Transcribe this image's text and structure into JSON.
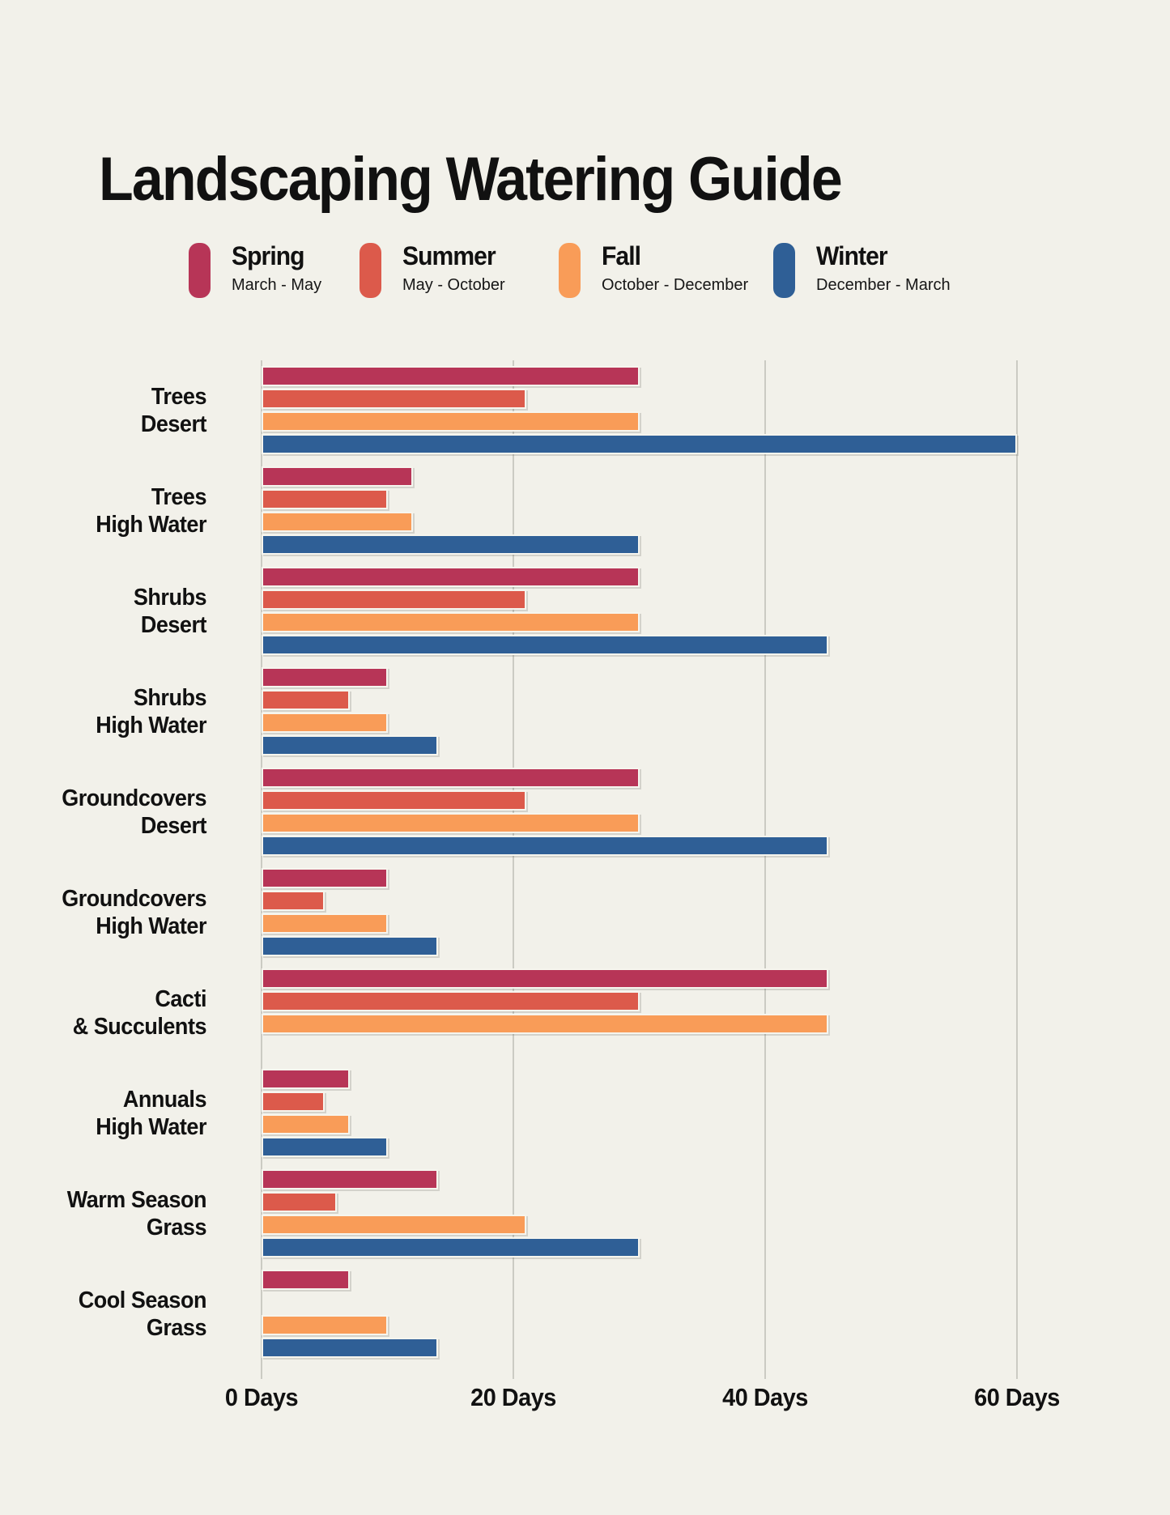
{
  "title": "Landscaping Watering Guide",
  "legend": {
    "items": [
      {
        "id": "spring",
        "label": "Spring",
        "range": "March - May",
        "color": "#B73557"
      },
      {
        "id": "summer",
        "label": "Summer",
        "range": "May - October",
        "color": "#DC5A4B"
      },
      {
        "id": "fall",
        "label": "Fall",
        "range": "October - December",
        "color": "#F99C58"
      },
      {
        "id": "winter",
        "label": "Winter",
        "range": "December - March",
        "color": "#2F5F96"
      }
    ]
  },
  "chart_data": {
    "type": "bar",
    "orientation": "horizontal",
    "title": "Landscaping Watering Guide",
    "unit": "Days",
    "xlim": [
      0,
      60
    ],
    "grid": true,
    "legend_position": "top",
    "x_ticks": [
      {
        "value": 0,
        "label": "0 Days"
      },
      {
        "value": 20,
        "label": "20 Days"
      },
      {
        "value": 40,
        "label": "40 Days"
      },
      {
        "value": 60,
        "label": "60 Days"
      }
    ],
    "categories": [
      {
        "line1": "Trees",
        "line2": "Desert"
      },
      {
        "line1": "Trees",
        "line2": "High Water"
      },
      {
        "line1": "Shrubs",
        "line2": "Desert"
      },
      {
        "line1": "Shrubs",
        "line2": "High Water"
      },
      {
        "line1": "Groundcovers",
        "line2": "Desert"
      },
      {
        "line1": "Groundcovers",
        "line2": "High Water"
      },
      {
        "line1": "Cacti",
        "line2": "& Succulents"
      },
      {
        "line1": "Annuals",
        "line2": "High Water"
      },
      {
        "line1": "Warm Season",
        "line2": "Grass"
      },
      {
        "line1": "Cool Season",
        "line2": "Grass"
      }
    ],
    "series": [
      {
        "name": "Spring",
        "color": "#B73557",
        "values": [
          30,
          12,
          30,
          10,
          30,
          10,
          45,
          7,
          14,
          7
        ]
      },
      {
        "name": "Summer",
        "color": "#DC5A4B",
        "values": [
          21,
          10,
          21,
          7,
          21,
          5,
          30,
          5,
          6,
          null
        ]
      },
      {
        "name": "Fall",
        "color": "#F99C58",
        "values": [
          30,
          12,
          30,
          10,
          30,
          10,
          45,
          7,
          21,
          10
        ]
      },
      {
        "name": "Winter",
        "color": "#2F5F96",
        "values": [
          60,
          30,
          45,
          14,
          45,
          14,
          null,
          10,
          30,
          14
        ]
      }
    ]
  },
  "colors": {
    "background": "#F2F1EA",
    "grid": "#CBCBC3",
    "text": "#111111"
  }
}
